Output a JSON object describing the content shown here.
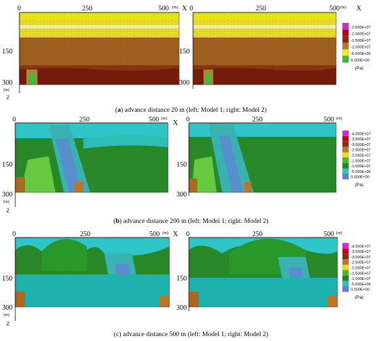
{
  "axes": {
    "x_ticks": [
      "0",
      "250",
      "500"
    ],
    "x_unit": "(m)",
    "x_label": "X",
    "z_ticks": [
      "150",
      "300"
    ],
    "z_unit": "(m)",
    "z_label": "Z"
  },
  "panels": [
    {
      "id": "a",
      "caption_letter": "a",
      "caption_text": "advance distance 20 m (left: Model 1; right: Model 2)",
      "legend": {
        "values": [
          "-2.500E+07",
          "-2.000E+07",
          "-1.500E+07",
          "-1.000E+07",
          "-5.000E+06",
          "0.000E+00"
        ],
        "colors": [
          "#e020e0",
          "#c40010",
          "#8a2a10",
          "#b87830",
          "#f4f000",
          "#30c030"
        ],
        "unit": "(Pa)"
      }
    },
    {
      "id": "b",
      "caption_letter": "b",
      "caption_text": "advance distance 200 m (left: Model 1; right: Model 2)",
      "legend": {
        "values": [
          "-4.000E+07",
          "-3.500E+07",
          "-3.000E+07",
          "-2.500E+07",
          "-2.000E+07",
          "-1.500E+07",
          "-1.000E+07",
          "-5.000E+06",
          "0.000E+00"
        ],
        "colors": [
          "#e020e0",
          "#c40010",
          "#8a2a10",
          "#c07828",
          "#f0e000",
          "#40c020",
          "#208a20",
          "#20c8c8",
          "#5a80e0"
        ],
        "unit": "(Pa)"
      }
    },
    {
      "id": "c",
      "caption_letter": "c",
      "caption_text": "advance distance 500 m (left: Model 1; right: Model 2)",
      "legend": {
        "values": [
          "-4.000E+07",
          "-3.500E+07",
          "-3.000E+07",
          "-2.500E+07",
          "-2.000E+07",
          "-1.500E+07",
          "-1.000E+07",
          "-5.000E+06",
          "0.000E+00"
        ],
        "colors": [
          "#e020e0",
          "#c40010",
          "#8a2a10",
          "#c07828",
          "#f0e000",
          "#40c020",
          "#208a20",
          "#20c8c8",
          "#5a80e0"
        ],
        "unit": "(Pa)"
      }
    }
  ]
}
